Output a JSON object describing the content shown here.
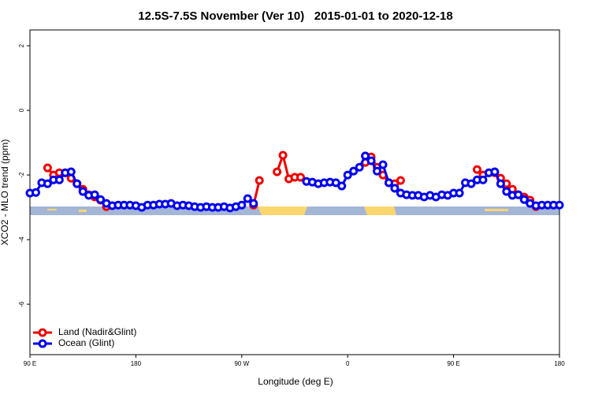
{
  "chart_data": {
    "type": "line",
    "title": "12.5S-7.5S November (Ver 10)   2015-01-01 to 2020-12-18",
    "xlabel": "Longitude (deg E)",
    "ylabel": "XCO2 - MLO trend (ppm)",
    "x": [
      90,
      95,
      100,
      105,
      110,
      115,
      120,
      125,
      130,
      135,
      140,
      145,
      150,
      155,
      160,
      165,
      170,
      175,
      180,
      185,
      190,
      195,
      200,
      205,
      210,
      215,
      220,
      225,
      230,
      235,
      240,
      245,
      250,
      255,
      260,
      265,
      270,
      275,
      280,
      285,
      290,
      295,
      300,
      305,
      310,
      315,
      320,
      325,
      330,
      335,
      340,
      345,
      350,
      355,
      360,
      365,
      370,
      375,
      380,
      385,
      390,
      395,
      400,
      405,
      410,
      415,
      420,
      425,
      430,
      435,
      440,
      445,
      450,
      455,
      460,
      465,
      470,
      475,
      480,
      485,
      490,
      495,
      500,
      505,
      510,
      515,
      520,
      525,
      530,
      535,
      540
    ],
    "series": [
      {
        "name": "Land (Nadir&Glint)",
        "color": "#ee0000",
        "values": [
          null,
          null,
          null,
          -1.78,
          -2.0,
          -1.93,
          -1.93,
          -2.1,
          -2.27,
          -2.44,
          -2.61,
          -2.68,
          -2.78,
          -2.98,
          null,
          null,
          null,
          null,
          null,
          null,
          null,
          null,
          null,
          null,
          null,
          null,
          null,
          null,
          null,
          null,
          null,
          null,
          null,
          null,
          null,
          null,
          null,
          null,
          -2.93,
          -2.17,
          null,
          null,
          -1.9,
          -1.39,
          -2.12,
          -2.07,
          -2.07,
          null,
          null,
          null,
          null,
          null,
          null,
          null,
          null,
          null,
          null,
          -1.61,
          -1.44,
          -1.76,
          -2.0,
          -2.24,
          -2.27,
          -2.17,
          null,
          null,
          null,
          null,
          null,
          null,
          null,
          null,
          null,
          null,
          null,
          null,
          -1.83,
          -2.0,
          -1.93,
          -1.93,
          -2.1,
          -2.27,
          -2.44,
          -2.61,
          -2.68,
          -2.78,
          -2.98,
          null,
          null,
          null,
          null
        ]
      },
      {
        "name": "Ocean (Glint)",
        "color": "#0000ee",
        "values": [
          -2.56,
          -2.54,
          -2.24,
          -2.27,
          -2.15,
          -2.15,
          -1.93,
          -1.9,
          -2.27,
          -2.51,
          -2.63,
          -2.61,
          -2.76,
          -2.88,
          -2.95,
          -2.93,
          -2.93,
          -2.93,
          -2.95,
          -3.0,
          -2.93,
          -2.93,
          -2.9,
          -2.9,
          -2.88,
          -2.95,
          -2.93,
          -2.95,
          -2.98,
          -3.0,
          -2.98,
          -3.0,
          -3.0,
          -2.98,
          -3.02,
          -2.98,
          -2.93,
          -2.73,
          -2.88,
          null,
          null,
          null,
          null,
          null,
          null,
          null,
          null,
          -2.2,
          -2.22,
          -2.27,
          -2.24,
          -2.22,
          -2.24,
          -2.34,
          -2.0,
          -1.88,
          -1.76,
          -1.41,
          -1.56,
          -1.88,
          -1.68,
          -2.24,
          -2.41,
          -2.56,
          -2.61,
          -2.63,
          -2.63,
          -2.68,
          -2.63,
          -2.68,
          -2.61,
          -2.63,
          -2.56,
          -2.56,
          -2.24,
          -2.27,
          -2.15,
          -2.15,
          -1.93,
          -1.9,
          -2.27,
          -2.51,
          -2.63,
          -2.61,
          -2.76,
          -2.88,
          -2.95,
          -2.93,
          -2.93,
          -2.93,
          -2.93
        ]
      }
    ],
    "xlim": [
      90,
      540
    ],
    "ylim": [
      -7.56,
      2.49
    ],
    "xticks": [
      {
        "value": 90,
        "label": "90 E"
      },
      180,
      {
        "value": 270,
        "label": "90 W"
      },
      {
        "value": 360,
        "label": "0"
      },
      {
        "value": 450,
        "label": "90 E"
      },
      {
        "value": 540,
        "label": "180"
      }
    ],
    "yticks": [
      -6,
      -4,
      -2,
      0,
      2
    ],
    "legend": "bottom-left"
  }
}
